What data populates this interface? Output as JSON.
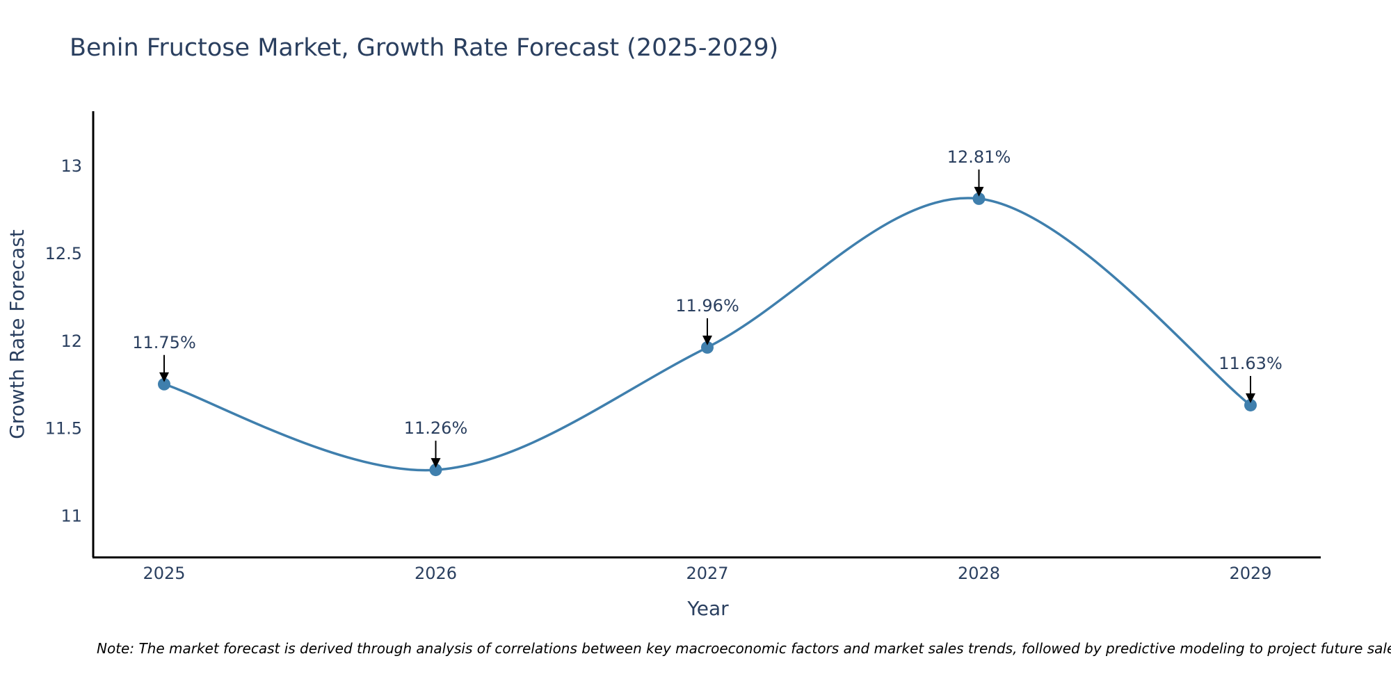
{
  "chart_data": {
    "type": "line",
    "title": "Benin Fructose Market, Growth Rate Forecast (2025-2029)",
    "xlabel": "Year",
    "ylabel": "Growth Rate Forecast",
    "categories": [
      "2025",
      "2026",
      "2027",
      "2028",
      "2029"
    ],
    "values": [
      11.75,
      11.26,
      11.96,
      12.81,
      11.63
    ],
    "data_labels": [
      "11.75%",
      "11.26%",
      "11.96%",
      "12.81%",
      "11.63%"
    ],
    "ylim": [
      10.76,
      13.31
    ],
    "yticks": [
      11,
      11.5,
      12,
      12.5,
      13
    ],
    "ytick_labels": [
      "11",
      "11.5",
      "12",
      "12.5",
      "13"
    ],
    "grid": false,
    "line_shape": "spline",
    "line_color": "#3f7fad",
    "note": "Note: The market forecast is derived through analysis of correlations between key macroeconomic factors and market sales trends, followed by predictive modeling to project future sales."
  }
}
